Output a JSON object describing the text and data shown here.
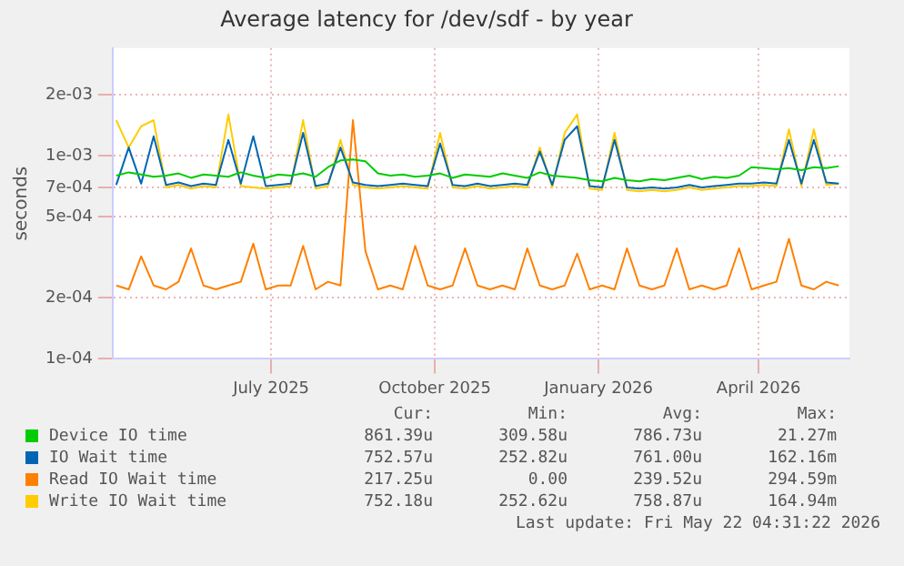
{
  "chart_data": {
    "type": "line",
    "title": "Average latency for /dev/sdf - by year",
    "ylabel": "seconds",
    "log": true,
    "grid": true,
    "legend": "bottom",
    "marker": "none",
    "line_style": "solid",
    "x": [
      "2025-04-05",
      "2025-04-12",
      "2025-04-19",
      "2025-04-26",
      "2025-05-03",
      "2025-05-10",
      "2025-05-17",
      "2025-05-24",
      "2025-05-31",
      "2025-06-07",
      "2025-06-14",
      "2025-06-21",
      "2025-06-28",
      "2025-07-05",
      "2025-07-12",
      "2025-07-19",
      "2025-07-26",
      "2025-08-02",
      "2025-08-09",
      "2025-08-16",
      "2025-08-23",
      "2025-08-30",
      "2025-09-06",
      "2025-09-13",
      "2025-09-20",
      "2025-09-27",
      "2025-10-04",
      "2025-10-11",
      "2025-10-18",
      "2025-10-25",
      "2025-11-01",
      "2025-11-08",
      "2025-11-15",
      "2025-11-22",
      "2025-11-29",
      "2025-12-06",
      "2025-12-13",
      "2025-12-20",
      "2025-12-27",
      "2026-01-03",
      "2026-01-10",
      "2026-01-17",
      "2026-01-24",
      "2026-01-31",
      "2026-02-07",
      "2026-02-14",
      "2026-02-21",
      "2026-02-28",
      "2026-03-07",
      "2026-03-14",
      "2026-03-21",
      "2026-03-28",
      "2026-04-04",
      "2026-04-11",
      "2026-04-18",
      "2026-04-25",
      "2026-05-02",
      "2026-05-09",
      "2026-05-16"
    ],
    "xlim": [
      "2025-04-03",
      "2026-05-22"
    ],
    "xticks": [
      {
        "value": "2025-07-01",
        "label": "July 2025"
      },
      {
        "value": "2025-10-01",
        "label": "October 2025"
      },
      {
        "value": "2026-01-01",
        "label": "January 2026"
      },
      {
        "value": "2026-04-01",
        "label": "April 2026"
      }
    ],
    "ylim": [
      0.0001,
      0.0034
    ],
    "yticks": [
      {
        "value": 0.0001,
        "label": "1e-04"
      },
      {
        "value": 0.0002,
        "label": "2e-04"
      },
      {
        "value": 0.0005,
        "label": "5e-04"
      },
      {
        "value": 0.0007,
        "label": "7e-04"
      },
      {
        "value": 0.001,
        "label": "1e-03"
      },
      {
        "value": 0.002,
        "label": "2e-03"
      }
    ],
    "series": [
      {
        "name": "Device IO time",
        "color": "#00cc00",
        "values": [
          0.0008,
          0.00083,
          0.00081,
          0.00079,
          0.0008,
          0.00082,
          0.00078,
          0.00081,
          0.0008,
          0.00079,
          0.00083,
          0.0008,
          0.00078,
          0.00081,
          0.0008,
          0.00082,
          0.00079,
          0.00088,
          0.00095,
          0.00096,
          0.00094,
          0.00082,
          0.0008,
          0.00081,
          0.00079,
          0.0008,
          0.00082,
          0.00078,
          0.00081,
          0.0008,
          0.00079,
          0.00082,
          0.0008,
          0.00078,
          0.00083,
          0.0008,
          0.00079,
          0.00078,
          0.00076,
          0.00075,
          0.00078,
          0.00076,
          0.00075,
          0.00077,
          0.00076,
          0.00078,
          0.0008,
          0.00077,
          0.00079,
          0.00078,
          0.0008,
          0.00088,
          0.00087,
          0.00086,
          0.00087,
          0.00085,
          0.00088,
          0.00087,
          0.00089
        ]
      },
      {
        "name": "IO Wait time",
        "color": "#0066b3",
        "values": [
          0.00072,
          0.0011,
          0.00073,
          0.00125,
          0.00072,
          0.00074,
          0.00071,
          0.00073,
          0.00072,
          0.0012,
          0.00073,
          0.00125,
          0.00071,
          0.00072,
          0.00073,
          0.0013,
          0.00071,
          0.00073,
          0.0011,
          0.00074,
          0.00072,
          0.00071,
          0.00072,
          0.00073,
          0.00072,
          0.00071,
          0.00115,
          0.00072,
          0.00071,
          0.00073,
          0.00071,
          0.00072,
          0.00073,
          0.00072,
          0.00105,
          0.00072,
          0.0012,
          0.0014,
          0.00071,
          0.0007,
          0.0012,
          0.0007,
          0.00069,
          0.0007,
          0.00069,
          0.0007,
          0.00072,
          0.0007,
          0.00071,
          0.00072,
          0.00073,
          0.00073,
          0.00074,
          0.00073,
          0.0012,
          0.00073,
          0.0012,
          0.00074,
          0.00073
        ]
      },
      {
        "name": "Read IO Wait time",
        "color": "#ff8000",
        "values": [
          0.00023,
          0.00022,
          0.00032,
          0.00023,
          0.00022,
          0.00024,
          0.00035,
          0.00023,
          0.00022,
          0.00023,
          0.00024,
          0.00037,
          0.00022,
          0.00023,
          0.00023,
          0.00036,
          0.00022,
          0.00024,
          0.00023,
          0.0015,
          0.00034,
          0.00022,
          0.00023,
          0.00022,
          0.00036,
          0.00023,
          0.00022,
          0.00023,
          0.00035,
          0.00023,
          0.00022,
          0.00023,
          0.00022,
          0.00035,
          0.00023,
          0.00022,
          0.00023,
          0.00033,
          0.00022,
          0.00023,
          0.00022,
          0.00035,
          0.00023,
          0.00022,
          0.00023,
          0.00035,
          0.00022,
          0.00023,
          0.00022,
          0.00023,
          0.00035,
          0.00022,
          0.00023,
          0.00024,
          0.00039,
          0.00023,
          0.00022,
          0.00024,
          0.00023
        ]
      },
      {
        "name": "Write IO Wait time",
        "color": "#ffcc00",
        "values": [
          0.0015,
          0.0011,
          0.0014,
          0.0015,
          0.0007,
          0.00072,
          0.00069,
          0.00071,
          0.0007,
          0.0016,
          0.00071,
          0.0007,
          0.00069,
          0.0007,
          0.00071,
          0.0015,
          0.00069,
          0.00071,
          0.0012,
          0.00072,
          0.0007,
          0.00069,
          0.0007,
          0.00071,
          0.0007,
          0.00069,
          0.0013,
          0.0007,
          0.00069,
          0.00071,
          0.00069,
          0.0007,
          0.00071,
          0.0007,
          0.0011,
          0.0007,
          0.0013,
          0.0016,
          0.00069,
          0.00068,
          0.0013,
          0.00068,
          0.00067,
          0.00068,
          0.00067,
          0.00068,
          0.0007,
          0.00068,
          0.00069,
          0.0007,
          0.00071,
          0.00071,
          0.00072,
          0.00071,
          0.00135,
          0.00071,
          0.00135,
          0.00072,
          0.00073
        ]
      }
    ],
    "annotations": [
      "Cur:",
      "Min:",
      "Avg:",
      "Max:",
      "861.39u",
      "309.58u",
      "786.73u",
      "21.27m",
      "752.57u",
      "252.82u",
      "761.00u",
      "162.16m",
      "217.25u",
      "0.00",
      "239.52u",
      "294.59m",
      "752.18u",
      "252.62u",
      "758.87u",
      "164.94m",
      "Last update: Fri May 22 04:31:22 2026"
    ]
  }
}
